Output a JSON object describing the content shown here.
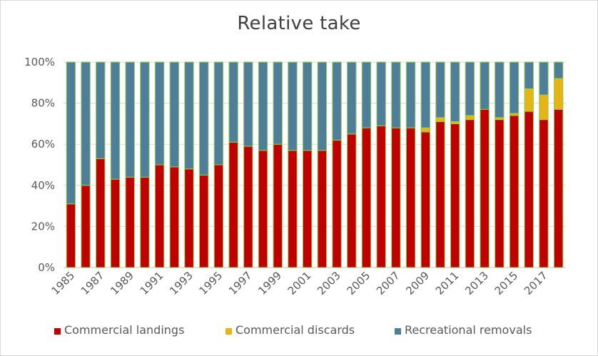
{
  "chart_data": {
    "type": "bar",
    "stacked": true,
    "percent": true,
    "title": "Relative take",
    "xlabel": "",
    "ylabel": "",
    "ylim": [
      0,
      100
    ],
    "yticks": [
      "0%",
      "20%",
      "40%",
      "60%",
      "80%",
      "100%"
    ],
    "x_tick_labels": [
      "1985",
      "1987",
      "1989",
      "1991",
      "1993",
      "1995",
      "1997",
      "1999",
      "2001",
      "2003",
      "2005",
      "2007",
      "2009",
      "2011",
      "2013",
      "2015",
      "2017"
    ],
    "categories": [
      "1985",
      "1986",
      "1987",
      "1988",
      "1989",
      "1990",
      "1991",
      "1992",
      "1993",
      "1994",
      "1995",
      "1996",
      "1997",
      "1998",
      "1999",
      "2000",
      "2001",
      "2002",
      "2003",
      "2004",
      "2005",
      "2006",
      "2007",
      "2008",
      "2009",
      "2010",
      "2011",
      "2012",
      "2013",
      "2014",
      "2015",
      "2016",
      "2017",
      "2018"
    ],
    "series": [
      {
        "name": "Commercial landings",
        "color": "#c00000",
        "values": [
          31,
          40,
          53,
          43,
          44,
          44,
          50,
          49,
          48,
          45,
          50,
          61,
          59,
          57,
          60,
          57,
          57,
          57,
          62,
          65,
          68,
          69,
          68,
          68,
          66,
          71,
          70,
          72,
          77,
          72,
          74,
          76,
          72,
          77
        ]
      },
      {
        "name": "Commercial discards",
        "color": "#e7b416",
        "values": [
          0,
          0,
          0,
          0,
          0,
          0,
          0,
          0,
          0,
          0,
          0,
          0,
          0,
          0,
          0,
          0,
          0,
          0,
          0,
          0,
          0,
          0,
          0,
          0,
          2,
          2,
          1,
          2,
          0,
          1,
          1,
          11,
          12,
          15
        ]
      },
      {
        "name": "Recreational removals",
        "color": "#4e7e99",
        "values": [
          69,
          60,
          47,
          57,
          56,
          56,
          50,
          51,
          52,
          55,
          50,
          39,
          41,
          43,
          40,
          43,
          43,
          43,
          38,
          35,
          32,
          31,
          32,
          32,
          32,
          27,
          29,
          26,
          23,
          27,
          25,
          13,
          16,
          8
        ]
      }
    ],
    "grid": true,
    "legend": "bottom"
  }
}
